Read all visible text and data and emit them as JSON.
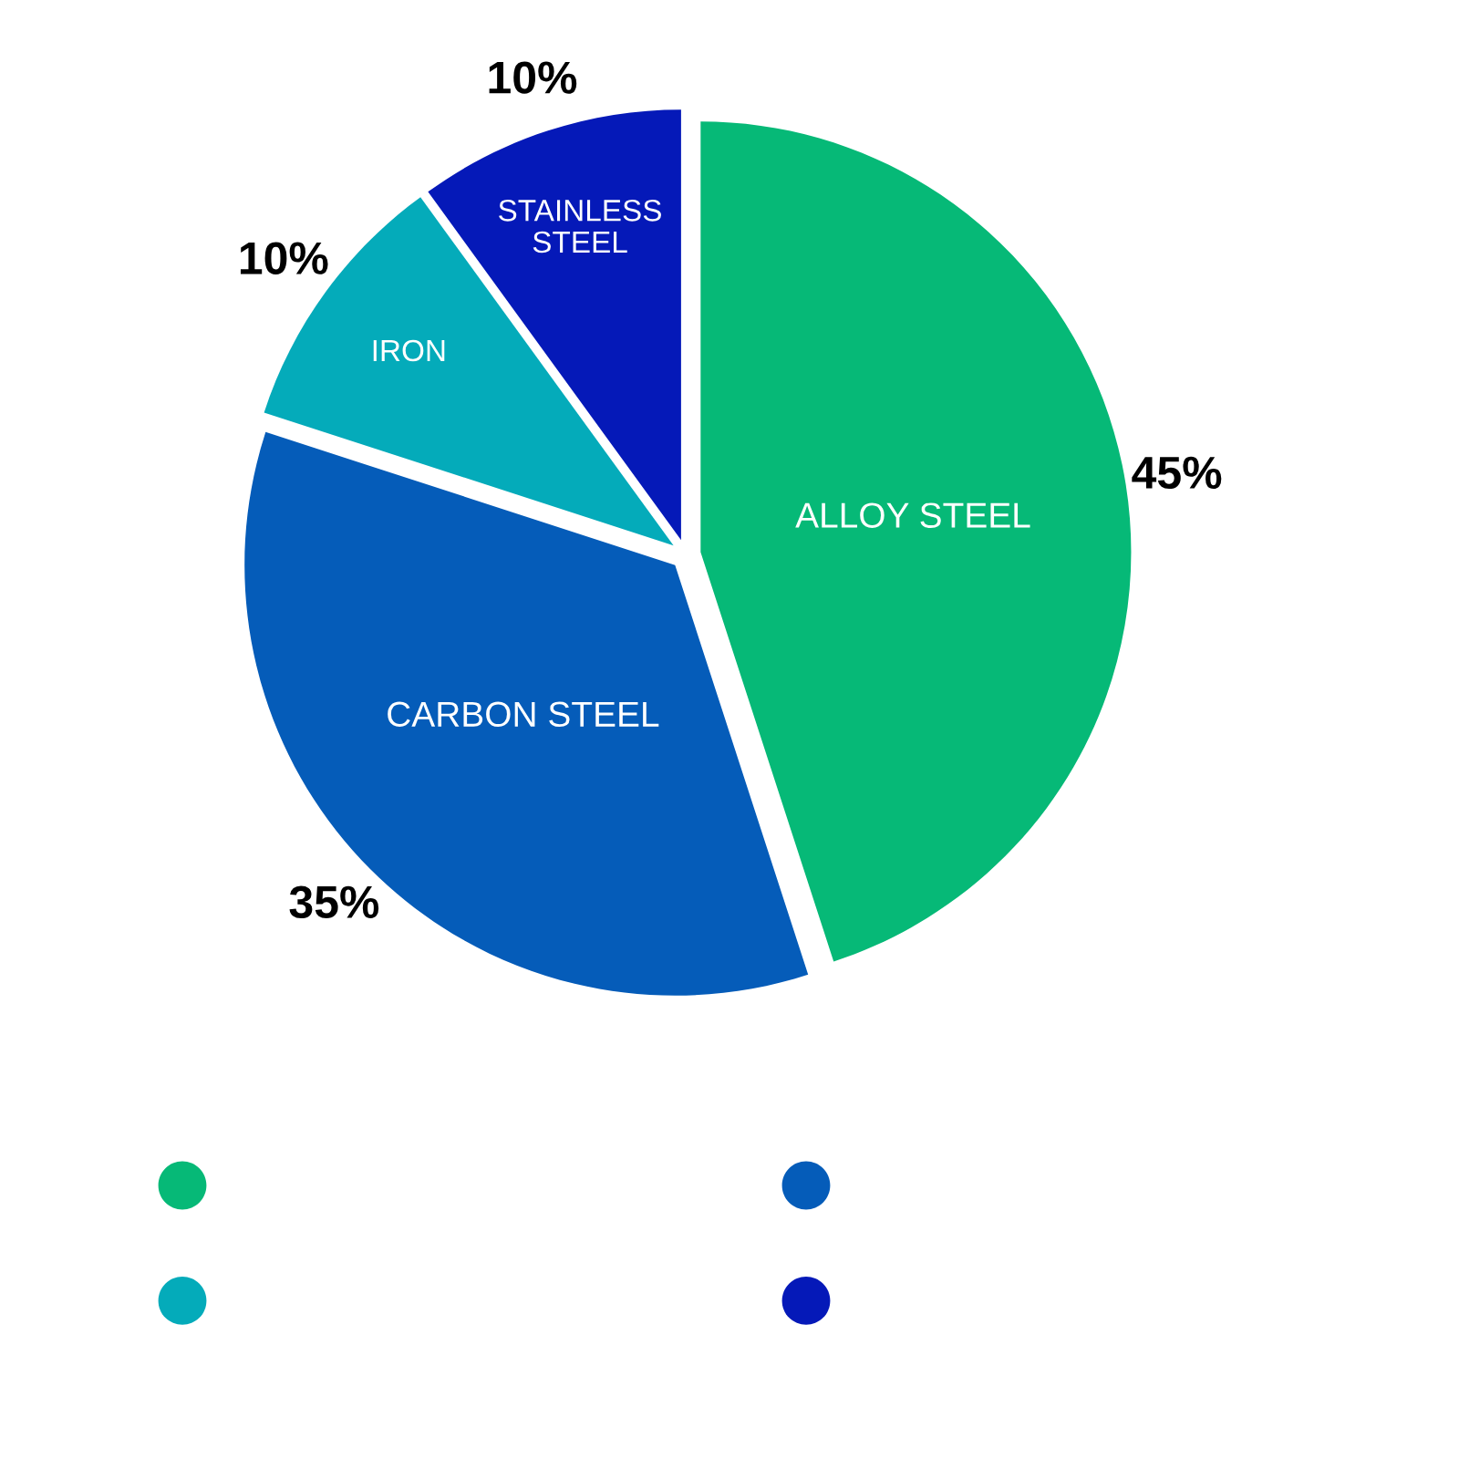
{
  "chart_data": {
    "type": "pie",
    "categories": [
      "ALLOY STEEL",
      "CARBON STEEL",
      "IRON",
      "STAINLESS\nSTEEL"
    ],
    "values": [
      45,
      35,
      10,
      10
    ],
    "colors": [
      "#06b977",
      "#055cb9",
      "#04abba",
      "#0519b8"
    ],
    "value_labels": [
      "45%",
      "35%",
      "10%",
      "10%"
    ]
  }
}
